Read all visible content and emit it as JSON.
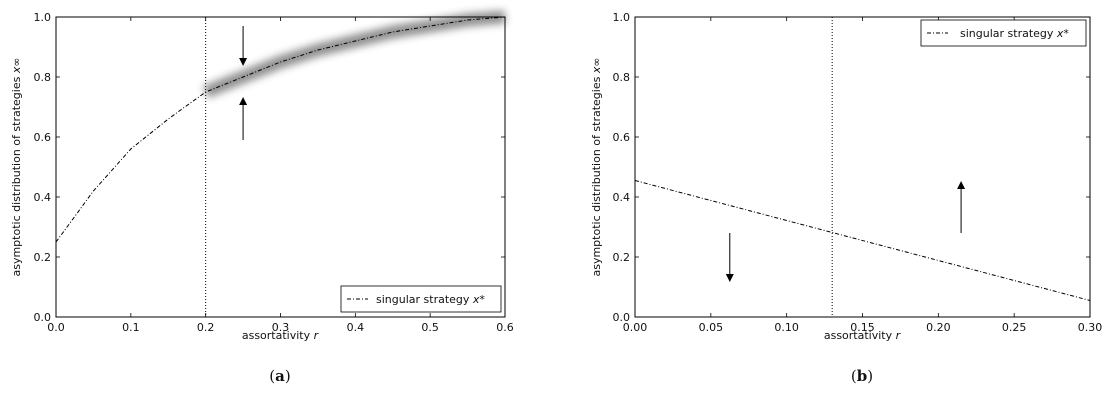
{
  "chart_data": [
    {
      "type": "line",
      "panel_label_open": "(",
      "panel_label_letter": "a",
      "panel_label_close": ")",
      "xlabel_text": "assortativity",
      "xlabel_var": "r",
      "ylabel_text": "asymptotic distribution of strategies",
      "ylabel_var": "x∞",
      "xlim": [
        0,
        0.6
      ],
      "ylim": [
        0,
        1
      ],
      "xticks": [
        0,
        0.1,
        0.2,
        0.3,
        0.4,
        0.5,
        0.6
      ],
      "xtick_labels": [
        "0.0",
        "0.1",
        "0.2",
        "0.3",
        "0.4",
        "0.5",
        "0.6"
      ],
      "yticks": [
        0,
        0.2,
        0.4,
        0.6,
        0.8,
        1.0
      ],
      "ytick_labels": [
        "0.0",
        "0.2",
        "0.4",
        "0.6",
        "0.8",
        "1.0"
      ],
      "legend_text": "singular strategy",
      "legend_var": "x*",
      "legend_position": "lower-right",
      "threshold_r": 0.2,
      "series": [
        {
          "name": "singular strategy x*",
          "style": "dash-dot",
          "x": [
            0.0,
            0.05,
            0.1,
            0.15,
            0.2,
            0.25,
            0.3,
            0.35,
            0.4,
            0.45,
            0.5,
            0.55,
            0.6
          ],
          "y": [
            0.25,
            0.42,
            0.56,
            0.66,
            0.75,
            0.8,
            0.85,
            0.89,
            0.92,
            0.95,
            0.97,
            0.99,
            1.0
          ]
        }
      ],
      "density_bands": [
        {
          "x_range": [
            0.0,
            0.2
          ],
          "y": 1.0
        },
        {
          "x_range": [
            0.0,
            0.2
          ],
          "y": 0.0
        },
        {
          "x_range": [
            0.2,
            0.6
          ],
          "y": "x*"
        }
      ],
      "arrows": [
        {
          "x": 0.25,
          "from_y": 0.97,
          "to_y": 0.85
        },
        {
          "x": 0.25,
          "from_y": 0.59,
          "to_y": 0.72
        }
      ]
    },
    {
      "type": "line",
      "panel_label_open": "(",
      "panel_label_letter": "b",
      "panel_label_close": ")",
      "xlabel_text": "assortativity",
      "xlabel_var": "r",
      "ylabel_text": "asymptotic distribution of strategies",
      "ylabel_var": "x∞",
      "xlim": [
        0,
        0.3
      ],
      "ylim": [
        0,
        1
      ],
      "xticks": [
        0,
        0.05,
        0.1,
        0.15,
        0.2,
        0.25,
        0.3
      ],
      "xtick_labels": [
        "0.00",
        "0.05",
        "0.10",
        "0.15",
        "0.20",
        "0.25",
        "0.30"
      ],
      "yticks": [
        0,
        0.2,
        0.4,
        0.6,
        0.8,
        1.0
      ],
      "ytick_labels": [
        "0.0",
        "0.2",
        "0.4",
        "0.6",
        "0.8",
        "1.0"
      ],
      "legend_text": "singular strategy",
      "legend_var": "x*",
      "legend_position": "upper-right",
      "threshold_r": 0.13,
      "series": [
        {
          "name": "singular strategy x*",
          "style": "dash-dot",
          "x": [
            0.0,
            0.3
          ],
          "y": [
            0.455,
            0.055
          ]
        }
      ],
      "density_bands": [
        {
          "x_range": [
            0.0,
            0.13
          ],
          "y": 0.0
        },
        {
          "x_range": [
            0.13,
            0.3
          ],
          "y": 1.0
        }
      ],
      "arrows": [
        {
          "x": 0.0625,
          "from_y": 0.28,
          "to_y": 0.13
        },
        {
          "x": 0.215,
          "from_y": 0.28,
          "to_y": 0.44
        }
      ]
    }
  ]
}
